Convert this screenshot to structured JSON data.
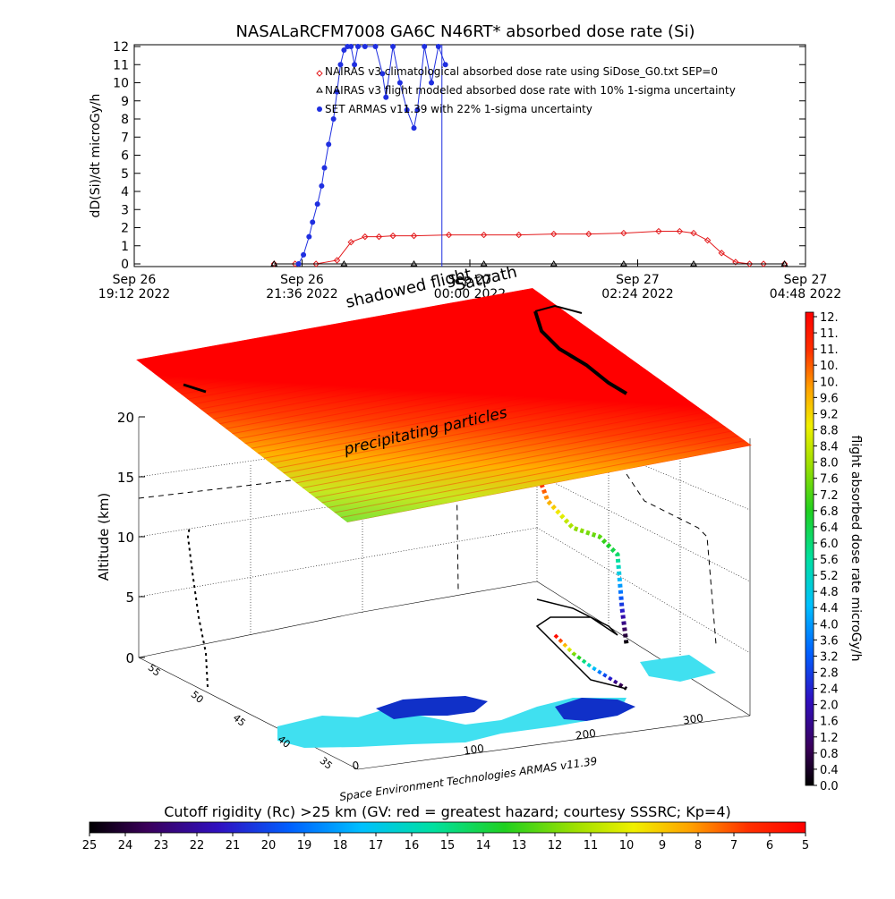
{
  "title": "NASALaRCFM7008   GA6C N46RT* absorbed dose rate (Si)",
  "colors": {
    "red_model": "#e31a1c",
    "black_model": "#000000",
    "armas": "#1f2fe0",
    "cyan_land": "#40e0f0",
    "dark_blue": "#1030c8"
  },
  "chart_data": [
    {
      "type": "line",
      "ylabel": "dD(Si)/dt microGy/h",
      "ylim": [
        0,
        12
      ],
      "y_ticks": [
        "0",
        "1",
        "2",
        "3",
        "4",
        "5",
        "6",
        "7",
        "8",
        "9",
        "10",
        "11",
        "12"
      ],
      "x_ticks": [
        {
          "date": "Sep 26",
          "time": "19:12 2022"
        },
        {
          "date": "Sep 26",
          "time": "21:36 2022"
        },
        {
          "date": "Sep 27",
          "time": "00:00 2022"
        },
        {
          "date": "Sep 27",
          "time": "02:24 2022"
        },
        {
          "date": "Sep 27",
          "time": "04:48 2022"
        }
      ],
      "x_unit": "hours since Sep 26 19:12 2022",
      "xlim": [
        0,
        9.6
      ],
      "legend": [
        "NAIRAS v3 climatological absorbed dose rate using SiDose_G0.txt SEP=0",
        "NAIRAS v3 flight modeled absorbed dose rate with 10% 1-sigma uncertainty",
        "SET ARMAS v11.39 with 22% 1-sigma uncertainty"
      ],
      "series": [
        {
          "name": "NAIRAS v3 climatological absorbed dose rate using SiDose_G0.txt SEP=0",
          "marker": "diamond",
          "x": [
            2.0,
            2.3,
            2.6,
            2.9,
            3.1,
            3.3,
            3.5,
            3.7,
            4.0,
            4.5,
            5.0,
            5.5,
            6.0,
            6.5,
            7.0,
            7.5,
            7.8,
            8.0,
            8.2,
            8.4,
            8.6,
            8.8,
            9.0,
            9.3
          ],
          "y": [
            0,
            0,
            0,
            0.2,
            1.2,
            1.5,
            1.5,
            1.55,
            1.55,
            1.6,
            1.6,
            1.6,
            1.65,
            1.65,
            1.7,
            1.8,
            1.8,
            1.7,
            1.3,
            0.6,
            0.1,
            0,
            0,
            0
          ]
        },
        {
          "name": "NAIRAS v3 flight modeled absorbed dose rate with 10% 1-sigma uncertainty",
          "marker": "triangle",
          "x": [
            2.0,
            3.0,
            4.0,
            5.0,
            6.0,
            7.0,
            8.0,
            9.3
          ],
          "y": [
            0,
            0,
            0,
            0,
            0,
            0,
            0,
            0
          ]
        },
        {
          "name": "SET ARMAS v11.39 with 22% 1-sigma uncertainty",
          "marker": "circle",
          "x": [
            2.35,
            2.42,
            2.5,
            2.55,
            2.62,
            2.68,
            2.72,
            2.78,
            2.85,
            2.9,
            2.95,
            3.0,
            3.05,
            3.1,
            3.15,
            3.2,
            3.3,
            3.45,
            3.55,
            3.6,
            3.7,
            3.8,
            3.9,
            4.0,
            4.05,
            4.15,
            4.25,
            4.35,
            4.45
          ],
          "y": [
            0,
            0.5,
            1.5,
            2.3,
            3.3,
            4.3,
            5.3,
            6.6,
            8.0,
            9.5,
            11.0,
            11.8,
            12,
            12,
            11.0,
            12,
            12,
            12,
            10.5,
            9.2,
            12,
            10.0,
            8.5,
            7.5,
            8.5,
            12,
            10.0,
            12,
            11.0
          ]
        }
      ],
      "vertical_marker_x": 4.4
    },
    {
      "type": "3d-surface",
      "annotations": [
        "shadowed flight",
        "Satpath",
        "precipitating particles"
      ],
      "zlabel": "Altitude (km)",
      "z_ticks": [
        "0",
        "5",
        "10",
        "15",
        "20"
      ],
      "lat_ticks": [
        "55",
        "50",
        "45",
        "40",
        "35"
      ],
      "lon_ticks": [
        "0",
        "100",
        "200",
        "300"
      ],
      "credit": "Space Environment Technologies ARMAS v11.39"
    },
    {
      "type": "colorbar",
      "label": "flight absorbed dose rate microGy/h",
      "ticks": [
        "12.",
        "11.",
        "11.",
        "10.",
        "10.",
        "9.6",
        "9.2",
        "8.8",
        "8.4",
        "8.0",
        "7.6",
        "7.2",
        "6.8",
        "6.4",
        "6.0",
        "5.6",
        "5.2",
        "4.8",
        "4.4",
        "4.0",
        "3.6",
        "3.2",
        "2.8",
        "2.4",
        "2.0",
        "1.6",
        "1.2",
        "0.8",
        "0.4",
        "0.0"
      ]
    },
    {
      "type": "colorbar",
      "label": "Cutoff rigidity (Rc) >25 km (GV: red = greatest hazard; courtesy SSSRC; Kp=4)",
      "ticks": [
        "25",
        "24",
        "23",
        "22",
        "21",
        "20",
        "19",
        "18",
        "17",
        "16",
        "15",
        "14",
        "13",
        "12",
        "11",
        "10",
        "9",
        "8",
        "7",
        "6",
        "5"
      ]
    }
  ]
}
